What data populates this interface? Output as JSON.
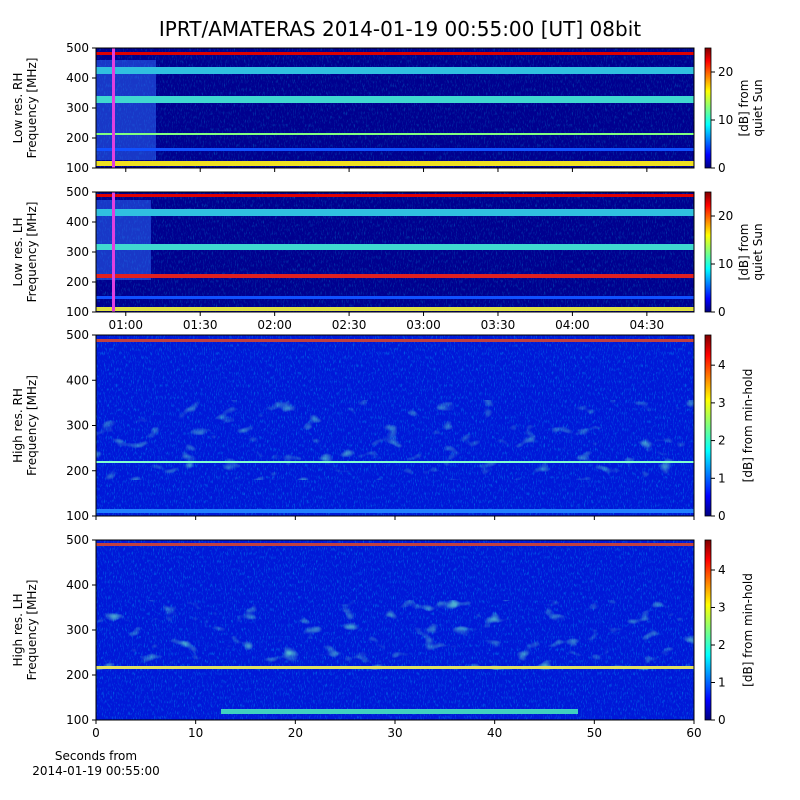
{
  "title": "IPRT/AMATERAS 2014-01-19 00:55:00 [UT]   08bit",
  "chart_data": [
    {
      "type": "heatmap",
      "ylabel": [
        "Low res. RH",
        "Frequency [MHz]"
      ],
      "ylim": [
        100,
        500
      ],
      "yticks": [
        100,
        200,
        300,
        400,
        500
      ],
      "colorbar_label": [
        "[dB] from",
        "quiet Sun"
      ],
      "clim": [
        0,
        25
      ],
      "cticks": [
        0,
        10,
        20
      ]
    },
    {
      "type": "heatmap",
      "ylabel": [
        "Low res. LH",
        "Frequency [MHz]"
      ],
      "ylim": [
        100,
        500
      ],
      "yticks": [
        100,
        200,
        300,
        400,
        500
      ],
      "xlim": [
        "00:48",
        "04:49"
      ],
      "xticks": [
        "01:00",
        "01:30",
        "02:00",
        "02:30",
        "03:00",
        "03:30",
        "04:00",
        "04:30"
      ],
      "colorbar_label": [
        "[dB] from",
        "quiet Sun"
      ],
      "clim": [
        0,
        25
      ],
      "cticks": [
        0,
        10,
        20
      ]
    },
    {
      "type": "heatmap",
      "ylabel": [
        "High res. RH",
        "Frequency [MHz]"
      ],
      "ylim": [
        100,
        500
      ],
      "yticks": [
        100,
        200,
        300,
        400,
        500
      ],
      "xlim": [
        0,
        60
      ],
      "colorbar_label": [
        "[dB] from min-hold"
      ],
      "clim": [
        0,
        4.8
      ],
      "cticks": [
        0,
        1,
        2,
        3,
        4
      ]
    },
    {
      "type": "heatmap",
      "ylabel": [
        "High res. LH",
        "Frequency [MHz]"
      ],
      "ylim": [
        100,
        500
      ],
      "yticks": [
        100,
        200,
        300,
        400,
        500
      ],
      "xlim": [
        0,
        60
      ],
      "xticks": [
        0,
        10,
        20,
        30,
        40,
        50,
        60
      ],
      "xlabel": [
        "Seconds from",
        "2014-01-19 00:55:00"
      ],
      "colorbar_label": [
        "[dB] from min-hold"
      ],
      "clim": [
        0,
        4.8
      ],
      "cticks": [
        0,
        1,
        2,
        3,
        4
      ]
    }
  ]
}
